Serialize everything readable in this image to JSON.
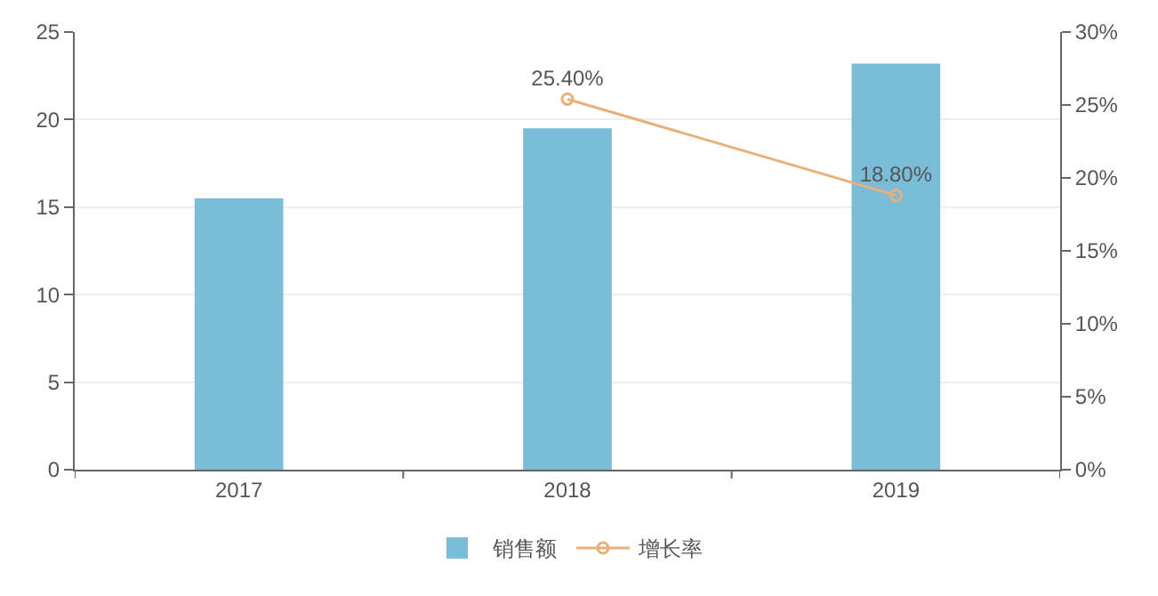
{
  "chart_data": {
    "type": "bar",
    "categories": [
      "2017",
      "2018",
      "2019"
    ],
    "series": [
      {
        "name": "销售额",
        "color": "#7bbcd9",
        "values": [
          15.5,
          19.5,
          23.2
        ]
      },
      {
        "name": "增长率",
        "type": "line",
        "axis": "y2",
        "color": "#e8b07a",
        "values": [
          null,
          25.4,
          18.8
        ],
        "value_labels": [
          null,
          "25.40%",
          "18.80%"
        ],
        "marker": "circle"
      }
    ],
    "ylim": [
      0,
      25
    ],
    "yticks": [
      0,
      5,
      10,
      15,
      20,
      25
    ],
    "y2lim": [
      0,
      30
    ],
    "y2ticks": [
      {
        "value": 0,
        "label": "0%"
      },
      {
        "value": 5,
        "label": "5%"
      },
      {
        "value": 10,
        "label": "10%"
      },
      {
        "value": 15,
        "label": "15%"
      },
      {
        "value": 20,
        "label": "20%"
      },
      {
        "value": 25,
        "label": "25%"
      },
      {
        "value": 30,
        "label": "30%"
      }
    ],
    "grid": "y",
    "legend": "bottom"
  }
}
